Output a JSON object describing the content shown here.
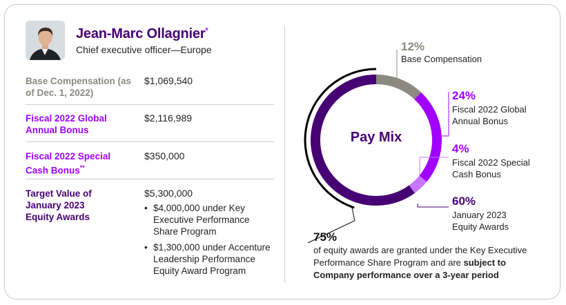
{
  "profile": {
    "name": "Jean-Marc Ollagnier",
    "name_mark": "*",
    "title": "Chief executive officer—Europe"
  },
  "compensation": [
    {
      "label": "Base Compensation (as of Dec. 1, 2022)",
      "mark": "",
      "value": "$1,069,540"
    },
    {
      "label": "Fiscal 2022 Global Annual Bonus",
      "mark": "",
      "value": "$2,116,989"
    },
    {
      "label": "Fiscal 2022 Special Cash Bonus",
      "mark": "**",
      "value": "$350,000"
    },
    {
      "label": "Target Value of January 2023 Equity Awards",
      "mark": "",
      "value": "$5,300,000",
      "bullets": [
        "$4,000,000 under Key Executive Performance Share Program",
        "$1,300,000 under Accenture Leadership Performance Equity Award Program"
      ]
    }
  ],
  "bullet_char": "•",
  "colors": {
    "gray": "#8a8a80",
    "violet": "#a100ff",
    "lavender": "#c776ff",
    "dark": "#460073",
    "black": "#000000"
  },
  "chart_data": {
    "type": "pie",
    "title": "Pay Mix",
    "slices": [
      {
        "label": "Base Compensation",
        "value": 12,
        "display": "12%"
      },
      {
        "label": "Fiscal 2022 Global Annual Bonus",
        "value": 24,
        "display": "24%"
      },
      {
        "label": "Fiscal 2022 Special Cash Bonus",
        "value": 4,
        "display": "4%"
      },
      {
        "label": "January 2023 Equity Awards",
        "value": 60,
        "display": "60%"
      }
    ],
    "annotation": {
      "value": 75,
      "display": "75%",
      "text_plain": "of equity awards are granted under the Key Executive Performance Share Program and are",
      "text_bold": "subject to Company performance over a 3-year period"
    }
  }
}
